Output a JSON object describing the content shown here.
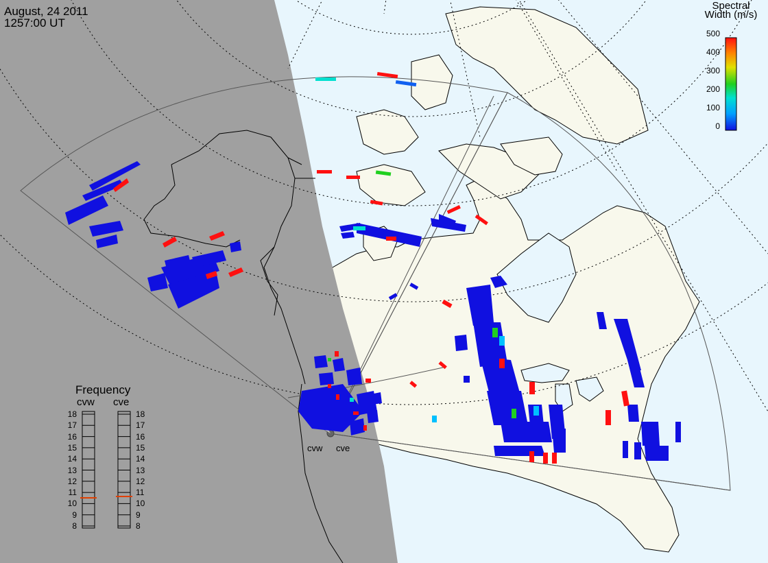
{
  "header": {
    "date": "August, 24 2011",
    "time": "1257:00 UT"
  },
  "colorbar": {
    "title_line1": "Spectral",
    "title_line2": "Width (m/s)",
    "ticks": [
      "500",
      "400",
      "300",
      "200",
      "100",
      "0"
    ],
    "range": [
      0,
      500
    ],
    "colors": [
      "#1010e0",
      "#00a0ff",
      "#00e0d0",
      "#20d020",
      "#e0e000",
      "#ff8000",
      "#ff1010"
    ]
  },
  "frequency_panel": {
    "title": "Frequency",
    "radars": [
      "cvw",
      "cve"
    ],
    "ticks": [
      "18",
      "17",
      "16",
      "15",
      "14",
      "13",
      "12",
      "11",
      "10",
      "9",
      "8"
    ],
    "range_mhz": [
      8,
      18
    ],
    "cvw_mhz": 10.5,
    "cve_mhz": 10.5,
    "marker_color": "#e04000"
  },
  "radar_labels": {
    "cvw": "cvw",
    "cve": "cve"
  },
  "map_colors": {
    "night": "#a0a0a0",
    "ocean": "#e8f6fd",
    "land": "#f8f8ec",
    "scatter_low": "#1010e0",
    "scatter_high": "#ff1010"
  }
}
